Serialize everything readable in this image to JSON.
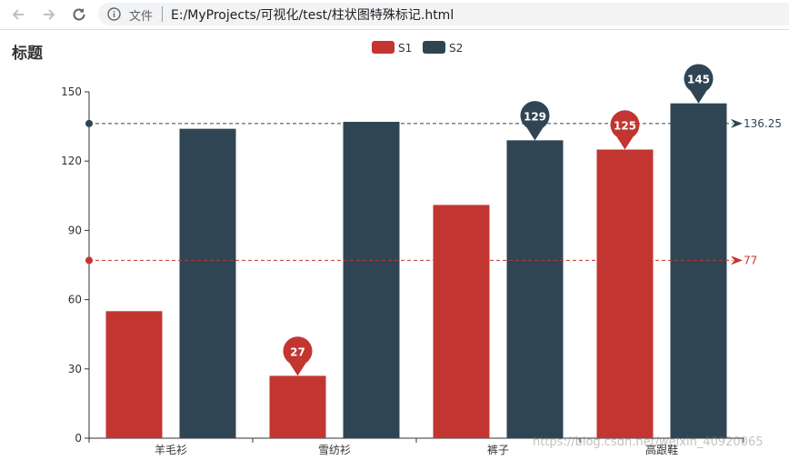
{
  "browser": {
    "address_label": "文件",
    "url": "E:/MyProjects/可视化/test/柱状图特殊标记.html"
  },
  "colors": {
    "s1": "#c23531",
    "s2": "#2f4554",
    "axis": "#333333",
    "toolbar_icon": "#5f6368"
  },
  "watermark": "https://blog.csdn.net/weixin_40920065",
  "chart_data": {
    "type": "bar",
    "title": "标题",
    "categories": [
      "羊毛衫",
      "雪纺衫",
      "裤子",
      "高跟鞋"
    ],
    "series": [
      {
        "name": "S1",
        "values": [
          55,
          27,
          101,
          125
        ]
      },
      {
        "name": "S2",
        "values": [
          134,
          137,
          129,
          145
        ]
      }
    ],
    "ylim": [
      0,
      150
    ],
    "yticks": [
      0,
      30,
      60,
      90,
      120,
      150
    ],
    "legend": "top-center",
    "mark_points": [
      {
        "series": "S1",
        "category": "雪纺衫",
        "value": 27,
        "label": "27"
      },
      {
        "series": "S1",
        "category": "高跟鞋",
        "value": 125,
        "label": "125"
      },
      {
        "series": "S2",
        "category": "裤子",
        "value": 129,
        "label": "129"
      },
      {
        "series": "S2",
        "category": "高跟鞋",
        "value": 145,
        "label": "145"
      }
    ],
    "mark_lines": [
      {
        "series": "S1",
        "type": "average",
        "value": 77,
        "label": "77"
      },
      {
        "series": "S2",
        "type": "average",
        "value": 136.25,
        "label": "136.25"
      }
    ]
  }
}
